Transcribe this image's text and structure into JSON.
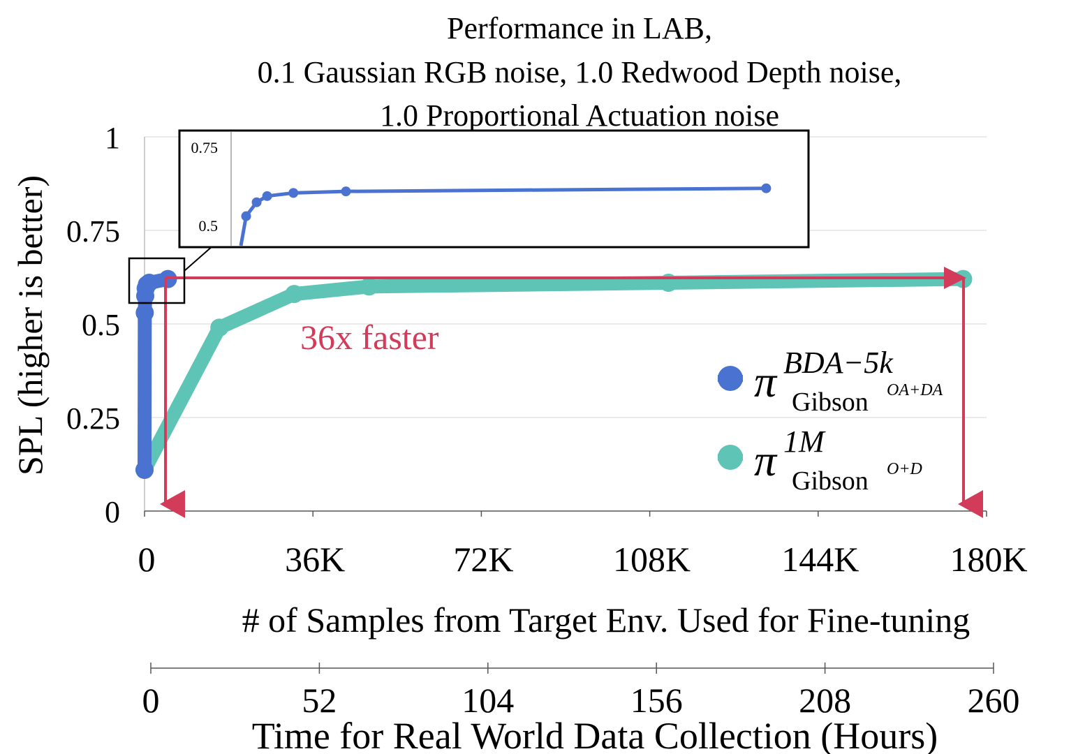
{
  "chart_data": {
    "type": "line",
    "title_lines": [
      "Performance in LAB,",
      "0.1 Gaussian RGB noise, 1.0 Redwood Depth noise,",
      "1.0 Proportional Actuation noise"
    ],
    "ylabel": "SPL (higher is better)",
    "xlabel": "# of Samples from Target Env. Used for Fine-tuning",
    "x2label": "Time for Real World Data Collection (Hours)",
    "xlim": [
      0,
      180000
    ],
    "ylim": [
      0,
      1
    ],
    "x2lim": [
      0,
      260
    ],
    "xticks": [
      0,
      36000,
      72000,
      108000,
      144000,
      180000
    ],
    "xtick_labels": [
      "0",
      "36K",
      "72K",
      "108K",
      "144K",
      "180K"
    ],
    "yticks": [
      0,
      0.25,
      0.5,
      0.75,
      1
    ],
    "ytick_labels": [
      "0",
      "0.25",
      "0.5",
      "0.75",
      "1"
    ],
    "x2ticks": [
      0,
      52,
      104,
      156,
      208,
      260
    ],
    "x2tick_labels": [
      "0",
      "52",
      "104",
      "156",
      "208",
      "260"
    ],
    "grid": "horizontal",
    "legend_position": "right",
    "series": [
      {
        "name": "π^{BDA-5k}_{Gibson^{OA+DA}}",
        "legend_main": "π",
        "legend_sup": "BDA−5k",
        "legend_sub": "Gibson",
        "legend_subsup": "OA+DA",
        "color": "#4a72d1",
        "x": [
          0,
          50,
          150,
          250,
          500,
          1000,
          5000
        ],
        "y": [
          0.11,
          0.53,
          0.575,
          0.595,
          0.605,
          0.61,
          0.62
        ]
      },
      {
        "name": "π^{1M}_{Gibson^{O+D}}",
        "legend_main": "π",
        "legend_sup": "1M",
        "legend_sub": "Gibson",
        "legend_subsup": "O+D",
        "color": "#5ec4b6",
        "x": [
          0,
          16000,
          32000,
          48000,
          112000,
          175000
        ],
        "y": [
          0.11,
          0.49,
          0.58,
          0.6,
          0.61,
          0.62
        ]
      }
    ],
    "inset": {
      "ytick_labels": [
        "0.75",
        "0.5"
      ],
      "ylim": [
        0.5,
        0.75
      ],
      "xlim": [
        0,
        5250
      ]
    },
    "annotation": {
      "text": "36x faster",
      "color": "#d23c5a"
    }
  }
}
